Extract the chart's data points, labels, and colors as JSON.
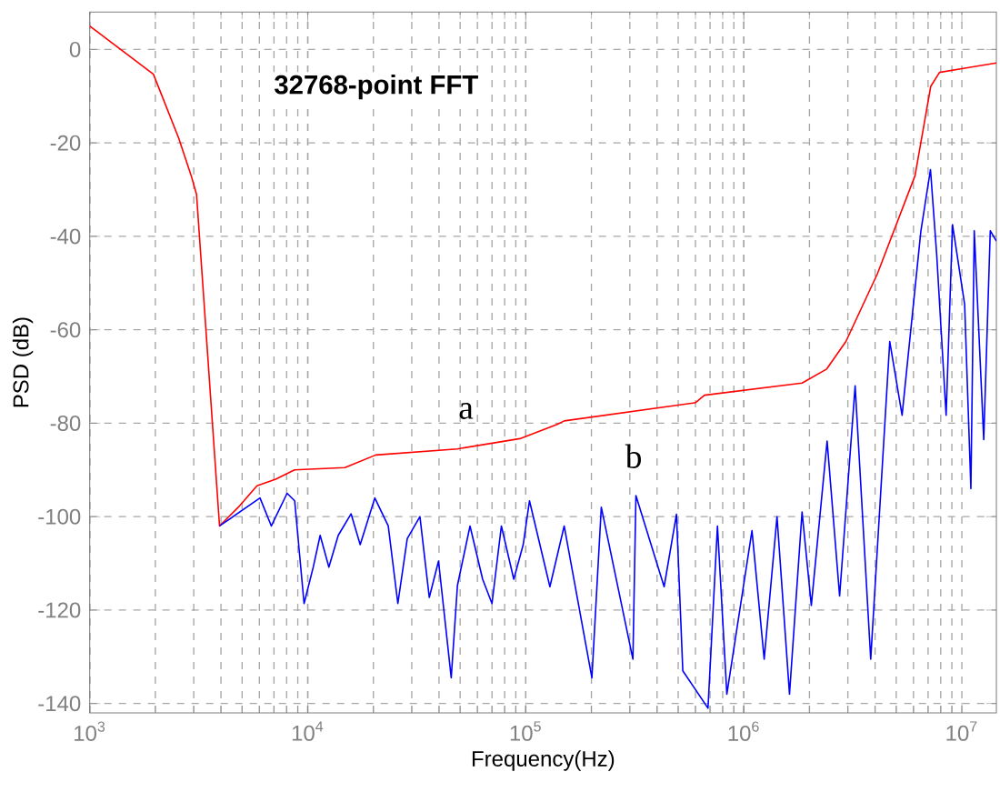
{
  "chart_data": {
    "type": "line",
    "xlabel": "Frequency(Hz)",
    "ylabel": "PSD (dB)",
    "log": "x",
    "grid": true,
    "line_style": "solid",
    "marker": "none",
    "xlim": [
      1000,
      14400000
    ],
    "ylim": [
      -142,
      8
    ],
    "xticks": [
      {
        "value": 1000,
        "label": "10$^{3}$"
      },
      {
        "value": 10000,
        "label": "10$^{4}$"
      },
      {
        "value": 100000,
        "label": "10$^{5}$"
      },
      {
        "value": 1000000,
        "label": "10$^{6}$"
      },
      {
        "value": 10000000,
        "label": "10$^{7}$"
      }
    ],
    "yticks": [
      -140,
      -120,
      -100,
      -80,
      -60,
      -40,
      -20,
      0
    ],
    "annotations": [
      "32768-point FFT",
      "a",
      "b"
    ],
    "series": [
      {
        "color": "#ff0000",
        "x": [
          1000,
          1960,
          2560,
          2920,
          3090,
          3940,
          4800,
          5850,
          7130,
          8700,
          14800,
          20500,
          48500,
          94000,
          140000,
          150000,
          600000,
          660000,
          1850000,
          2400000,
          2940000,
          4100000,
          6100000,
          7200000,
          7900000,
          10300000,
          14400000
        ],
        "values": [
          5,
          -5.3,
          -19,
          -27,
          -31,
          -102,
          -98,
          -93.4,
          -92,
          -90,
          -89.5,
          -86.8,
          -85.5,
          -83.3,
          -80.2,
          -79.5,
          -75.6,
          -74,
          -71.4,
          -68.4,
          -62.5,
          -48,
          -27,
          -7.9,
          -4.9,
          -4,
          -2.9
        ]
      },
      {
        "color": "#0000ff",
        "x": [
          3940,
          6040,
          6810,
          8040,
          8710,
          9620,
          10600,
          11400,
          12500,
          13800,
          15800,
          17400,
          20300,
          23400,
          25900,
          28600,
          32700,
          36100,
          39800,
          45500,
          48600,
          55500,
          63400,
          70000,
          77300,
          88100,
          97300,
          104000,
          129000,
          150000,
          201000,
          222000,
          310000,
          320000,
          431000,
          491000,
          525000,
          685000,
          757000,
          836000,
          1090000,
          1240000,
          1420000,
          1620000,
          1850000,
          2040000,
          2410000,
          2750000,
          3240000,
          3820000,
          4670000,
          5320000,
          6490000,
          7180000,
          7670000,
          8470000,
          9060000,
          10300000,
          11000000,
          11400000,
          12600000,
          13500000,
          14400000
        ],
        "values": [
          -102,
          -96,
          -102,
          -95,
          -96.6,
          -118.6,
          -110.8,
          -104,
          -110.8,
          -104,
          -99.4,
          -106,
          -96,
          -102,
          -118.6,
          -104.7,
          -100,
          -117.3,
          -109.5,
          -134.5,
          -114.7,
          -102,
          -113.4,
          -118.6,
          -102,
          -113.4,
          -106,
          -96.6,
          -115,
          -102,
          -134.5,
          -98,
          -130.5,
          -95.5,
          -115,
          -99.5,
          -133,
          -141,
          -102,
          -138,
          -103,
          -130.5,
          -100,
          -138,
          -99,
          -119,
          -83.8,
          -117,
          -72,
          -130.5,
          -62.5,
          -78.3,
          -38.8,
          -25.7,
          -44,
          -78.3,
          -37.5,
          -54.6,
          -94,
          -38.8,
          -83.5,
          -38.8,
          -41
        ]
      }
    ]
  }
}
